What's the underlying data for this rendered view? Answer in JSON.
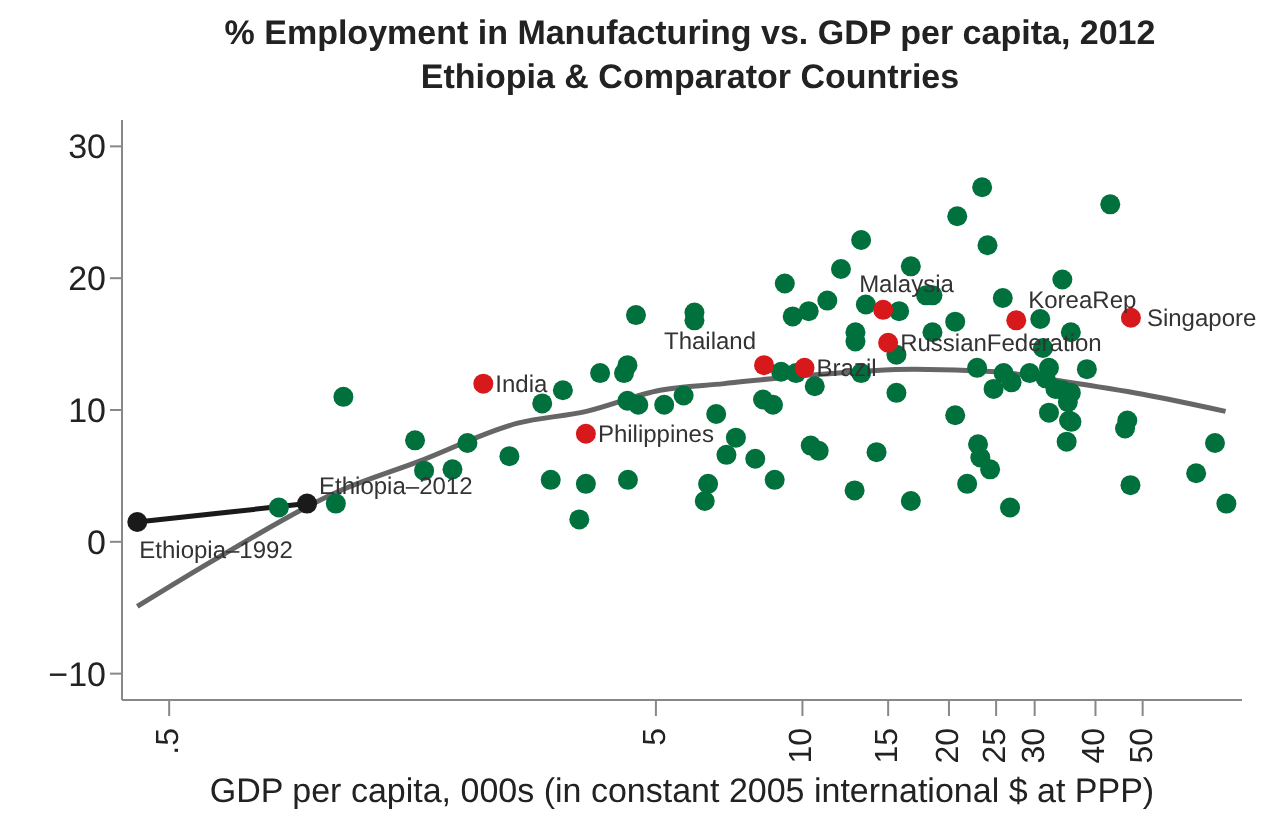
{
  "chart_data": {
    "type": "scatter",
    "title": "% Employment in Manufacturing vs. GDP per capita, 2012",
    "subtitle": "Ethiopia & Comparator Countries",
    "xlabel": "GDP per capita, 000s (in constant 2005 international $ at PPP)",
    "log": "x",
    "grid": false,
    "legend": false,
    "marker": "circle",
    "xlim": [
      0.4,
      80
    ],
    "xticks": [
      {
        "value": 0.5,
        "label": ".5"
      },
      5,
      10,
      15,
      20,
      25,
      30,
      40,
      50
    ],
    "ylim": [
      -12,
      32
    ],
    "yticks": [
      {
        "value": -10,
        "label": "−10"
      },
      0,
      10,
      20,
      30
    ],
    "series": [
      {
        "type": "scatter",
        "color": "#00703c",
        "x": [
          1.14,
          0.84,
          1.1,
          1.6,
          1.67,
          1.91,
          2.05,
          2.5,
          2.92,
          3.22,
          3.04,
          3.59,
          3.48,
          3.84,
          4.3,
          4.37,
          4.55,
          4.37,
          4.6,
          4.38,
          5.2,
          5.7,
          6.0,
          6.0,
          6.3,
          6.4,
          6.65,
          7.3,
          6.98,
          8.0,
          8.77,
          9.2,
          9.55,
          10.3,
          11.25,
          12.0,
          13.2,
          8.3,
          8.7,
          9.04,
          9.7,
          10.6,
          10.4,
          10.8,
          12.8,
          14.2,
          12.85,
          12.85,
          13.2,
          13.5,
          15.6,
          15.6,
          15.8,
          16.7,
          16.7,
          17.95,
          18.5,
          18.5,
          20.8,
          24.0,
          23.4,
          20.6,
          20.6,
          21.8,
          22.95,
          23.2,
          24.3,
          26.7,
          22.85,
          24.7,
          25.9,
          26.9,
          25.8,
          29.3,
          30.8,
          34.2,
          32.1,
          31.6,
          33.1,
          31.2,
          35.6,
          34.2,
          35.6,
          35.1,
          35.3,
          32.1,
          35.7,
          34.9,
          38.4,
          42.9,
          46.5,
          46,
          47.2,
          64.4,
          70.4,
          74.3
        ],
        "values": [
          11.0,
          2.6,
          2.9,
          7.7,
          5.4,
          5.5,
          7.5,
          6.5,
          10.5,
          11.5,
          4.7,
          4.4,
          1.7,
          12.8,
          12.8,
          13.4,
          17.2,
          10.7,
          10.4,
          4.7,
          10.4,
          11.1,
          17.4,
          16.8,
          3.1,
          4.4,
          9.7,
          7.9,
          6.6,
          6.3,
          4.7,
          19.6,
          17.1,
          17.5,
          18.3,
          20.7,
          22.9,
          10.8,
          10.4,
          12.9,
          12.8,
          11.8,
          7.3,
          6.9,
          3.9,
          6.8,
          15.9,
          15.2,
          12.8,
          18.0,
          11.3,
          14.2,
          17.5,
          20.9,
          3.1,
          18.7,
          18.7,
          15.9,
          24.7,
          22.5,
          26.9,
          16.7,
          9.6,
          4.4,
          7.4,
          6.4,
          5.5,
          2.6,
          13.2,
          11.6,
          12.8,
          12.1,
          18.5,
          12.8,
          16.9,
          19.9,
          13.2,
          12.4,
          11.6,
          14.7,
          15.9,
          11.5,
          11.3,
          10.6,
          9.2,
          9.8,
          9.1,
          7.6,
          13.1,
          25.6,
          9.2,
          8.6,
          4.3,
          5.2,
          7.5,
          2.9
        ]
      },
      {
        "type": "scatter",
        "color": "#d7191c",
        "x": [
          2.21,
          3.59,
          8.34,
          10.1,
          14.65,
          15,
          27.5,
          47.3
        ],
        "values": [
          12.0,
          8.2,
          13.4,
          13.2,
          17.6,
          15.1,
          16.8,
          17.0
        ]
      },
      {
        "type": "line",
        "color": "#666666",
        "marker": "none",
        "x": [
          0.43,
          0.63,
          1.11,
          1.63,
          2.6,
          3.6,
          5.1,
          6.9,
          10,
          17,
          25,
          34,
          50,
          74
        ],
        "values": [
          -4.9,
          -1.2,
          3.8,
          6.1,
          9.0,
          9.9,
          11.5,
          12.0,
          12.6,
          13.1,
          12.9,
          12.2,
          11.2,
          9.9
        ]
      },
      {
        "type": "line",
        "color": "#1a1a1a",
        "marker": "circle",
        "x": [
          0.43,
          0.96
        ],
        "values": [
          1.5,
          2.9
        ]
      }
    ],
    "annotations": [
      {
        "text": "India",
        "x": 2.21,
        "y": 12.0
      },
      {
        "text": "Philippines",
        "x": 3.59,
        "y": 8.2
      },
      {
        "text": "Thailand",
        "x": 8.34,
        "y": 13.4
      },
      {
        "text": "Brazil",
        "x": 10.1,
        "y": 13.2
      },
      {
        "text": "Malaysia",
        "x": 14.65,
        "y": 17.6
      },
      {
        "text": "RussianFederation",
        "x": 15,
        "y": 15.1
      },
      {
        "text": "KoreaRep",
        "x": 27.5,
        "y": 16.8
      },
      {
        "text": "Singapore",
        "x": 47.3,
        "y": 17.0
      },
      {
        "text": "Ethiopia–1992",
        "x": 0.43,
        "y": 1.5
      },
      {
        "text": "Ethiopia–2012",
        "x": 0.96,
        "y": 2.9
      }
    ]
  }
}
